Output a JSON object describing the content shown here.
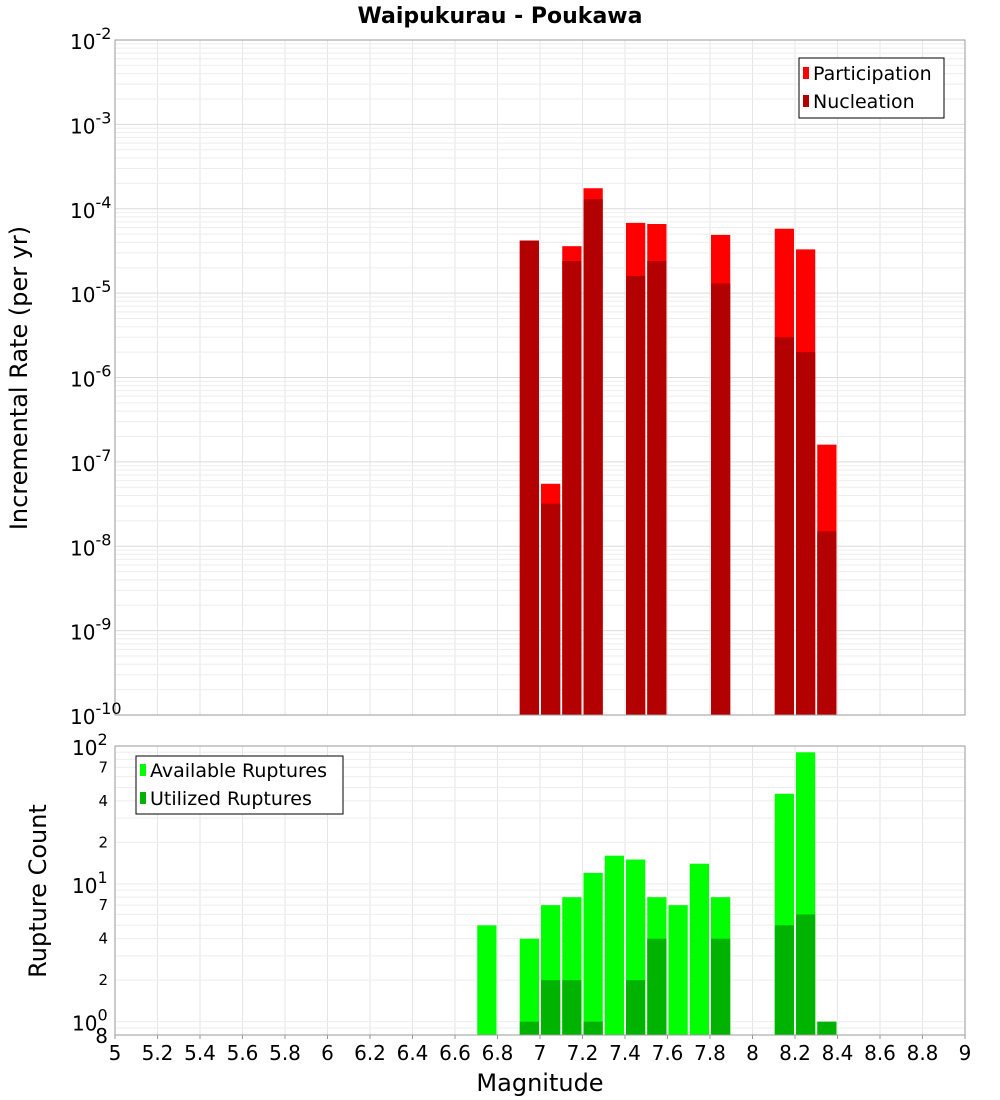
{
  "chart_data": [
    {
      "type": "bar",
      "title": "Waipukurau - Poukawa",
      "ylabel": "Incremental Rate (per yr)",
      "xlabel": "",
      "yscale": "log",
      "ylim_exp": [
        -10,
        -2
      ],
      "xlim": [
        5,
        9
      ],
      "bin_width": 0.1,
      "grid": true,
      "legend_position": "top-right",
      "y_tick_exponents": [
        "-2",
        "-3",
        "-4",
        "-5",
        "-6",
        "-7",
        "-8",
        "-9",
        "-10"
      ],
      "y_tick_base": "10",
      "series": [
        {
          "name": "Participation",
          "color": "#ff0000",
          "x": [
            6.95,
            7.05,
            7.15,
            7.25,
            7.45,
            7.55,
            7.85,
            8.15,
            8.25,
            8.35
          ],
          "values": [
            4.2e-05,
            5.5e-08,
            3.6e-05,
            0.000175,
            6.8e-05,
            6.6e-05,
            4.9e-05,
            5.8e-05,
            3.3e-05,
            1.6e-07
          ]
        },
        {
          "name": "Nucleation",
          "color": "#b30000",
          "x": [
            6.95,
            7.05,
            7.15,
            7.25,
            7.45,
            7.55,
            7.85,
            8.15,
            8.25,
            8.35
          ],
          "values": [
            4.2e-05,
            3.2e-08,
            2.4e-05,
            0.00013,
            1.6e-05,
            2.4e-05,
            1.3e-05,
            3e-06,
            2e-06,
            1.5e-08
          ]
        }
      ]
    },
    {
      "type": "bar",
      "title": "",
      "ylabel": "Rupture Count",
      "xlabel": "Magnitude",
      "yscale": "log",
      "ylim": [
        0.8,
        100
      ],
      "xlim": [
        5,
        9
      ],
      "bin_width": 0.1,
      "grid": true,
      "legend_position": "top-left",
      "x_ticks": [
        "5",
        "5.2",
        "5.4",
        "5.6",
        "5.8",
        "6",
        "6.2",
        "6.4",
        "6.6",
        "6.8",
        "7",
        "7.2",
        "7.4",
        "7.6",
        "7.8",
        "8",
        "8.2",
        "8.4",
        "8.6",
        "8.8",
        "9"
      ],
      "y_major_ticks": [
        {
          "value": 100,
          "base": "10",
          "exp": "2"
        },
        {
          "value": 10,
          "base": "10",
          "exp": "1"
        },
        {
          "value": 1,
          "base": "10",
          "exp": "0"
        }
      ],
      "y_minor_ticks": [
        {
          "value": 70,
          "label": "7"
        },
        {
          "value": 40,
          "label": "4"
        },
        {
          "value": 20,
          "label": "2"
        },
        {
          "value": 7,
          "label": "7"
        },
        {
          "value": 4,
          "label": "4"
        },
        {
          "value": 2,
          "label": "2"
        },
        {
          "value": 0.8,
          "label": "8"
        }
      ],
      "series": [
        {
          "name": "Available Ruptures",
          "color": "#00ff00",
          "x": [
            6.75,
            6.95,
            7.05,
            7.15,
            7.25,
            7.35,
            7.45,
            7.55,
            7.65,
            7.75,
            7.85,
            8.15,
            8.25
          ],
          "values": [
            5,
            4,
            7,
            8,
            12,
            16,
            15,
            8,
            7,
            14,
            8,
            45,
            90
          ]
        },
        {
          "name": "Utilized Ruptures",
          "color": "#00b300",
          "x": [
            6.95,
            7.05,
            7.15,
            7.25,
            7.45,
            7.55,
            7.85,
            8.15,
            8.25,
            8.35
          ],
          "values": [
            1,
            2,
            2,
            1,
            2,
            4,
            4,
            5,
            6,
            1
          ]
        }
      ]
    }
  ]
}
